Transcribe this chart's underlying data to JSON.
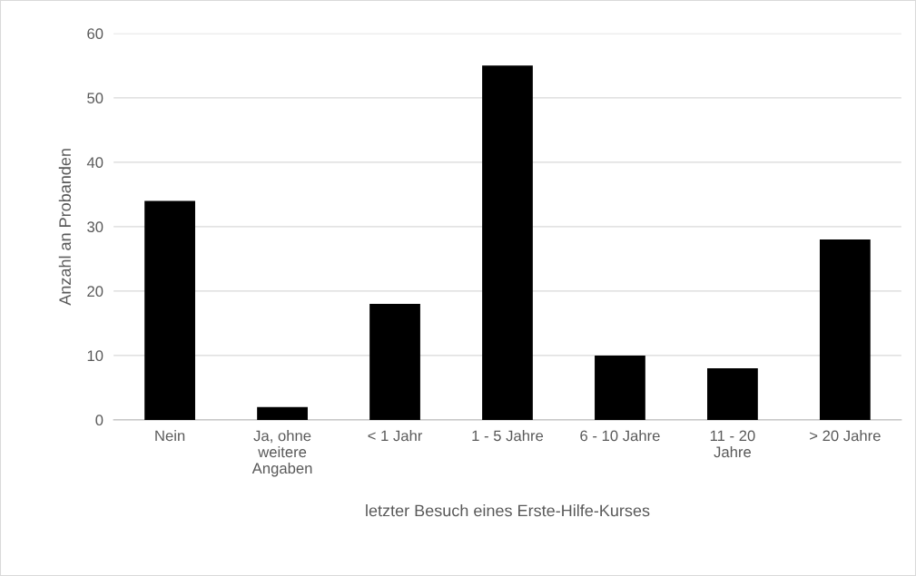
{
  "chart_data": {
    "type": "bar",
    "categories": [
      "Nein",
      "Ja, ohne\nweitere\nAngaben",
      "< 1 Jahr",
      "1 - 5 Jahre",
      "6 - 10 Jahre",
      "11 - 20\nJahre",
      "> 20 Jahre"
    ],
    "values": [
      34,
      2,
      18,
      55,
      10,
      8,
      28
    ],
    "color": "#000000",
    "xlabel": "letzter Besuch eines Erste-Hilfe-Kurses",
    "ylabel": "Anzahl an Probanden",
    "ylim": [
      0,
      60
    ],
    "yticks": [
      0,
      10,
      20,
      30,
      40,
      50,
      60
    ],
    "grid": "y",
    "legend": false
  }
}
